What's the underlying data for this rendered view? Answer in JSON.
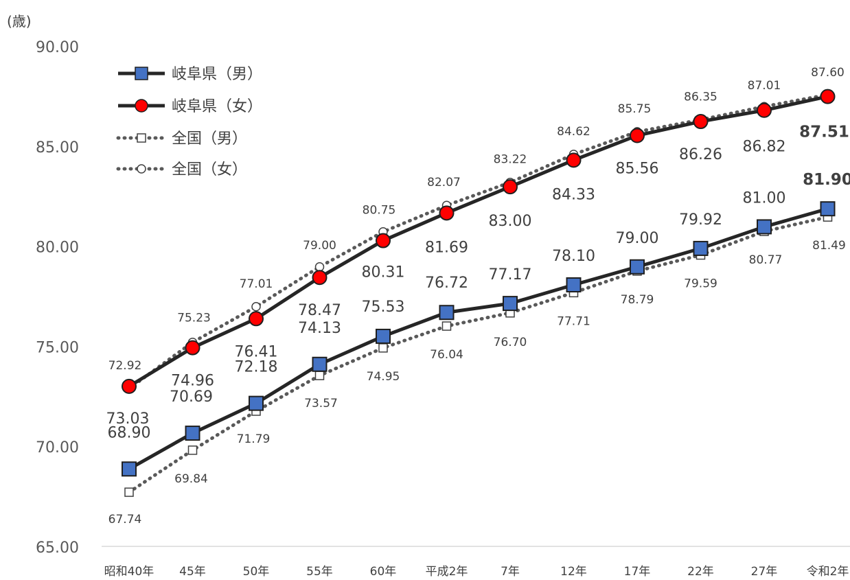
{
  "chart_data": {
    "type": "line",
    "title": "",
    "xlabel": "",
    "ylabel": "(歳)",
    "ylim": [
      65,
      90
    ],
    "yticks": [
      "90.00",
      "85.00",
      "80.00",
      "75.00",
      "70.00",
      "65.00"
    ],
    "grid": false,
    "legend_position": "top-left",
    "categories": [
      "昭和40年",
      "45年",
      "50年",
      "55年",
      "60年",
      "平成2年",
      "7年",
      "12年",
      "17年",
      "22年",
      "27年",
      "令和2年"
    ],
    "series": [
      {
        "name": "岐阜県（男）",
        "style": "solid",
        "marker": "square",
        "marker_color": "#4472C4",
        "line_color": "#262626",
        "values": [
          68.9,
          70.69,
          72.18,
          74.13,
          75.53,
          76.72,
          77.17,
          78.1,
          79.0,
          79.92,
          81.0,
          81.9
        ],
        "labels": [
          "68.90",
          "70.69",
          "72.18",
          "74.13",
          "75.53",
          "76.72",
          "77.17",
          "78.10",
          "79.00",
          "79.92",
          "81.00",
          "81.90"
        ]
      },
      {
        "name": "岐阜県（女）",
        "style": "solid",
        "marker": "circle",
        "marker_color": "#FF0000",
        "line_color": "#262626",
        "values": [
          73.03,
          74.96,
          76.41,
          78.47,
          80.31,
          81.69,
          83.0,
          84.33,
          85.56,
          86.26,
          86.82,
          87.51
        ],
        "labels": [
          "73.03",
          "74.96",
          "76.41",
          "78.47",
          "80.31",
          "81.69",
          "83.00",
          "84.33",
          "85.56",
          "86.26",
          "86.82",
          "87.51"
        ]
      },
      {
        "name": "全国（男）",
        "style": "dotted",
        "marker": "square",
        "marker_color": "#FFFFFF",
        "line_color": "#595959",
        "values": [
          67.74,
          69.84,
          71.79,
          73.57,
          74.95,
          76.04,
          76.7,
          77.71,
          78.79,
          79.59,
          80.77,
          81.49
        ],
        "labels": [
          "67.74",
          "69.84",
          "71.79",
          "73.57",
          "74.95",
          "76.04",
          "76.70",
          "77.71",
          "78.79",
          "79.59",
          "80.77",
          "81.49"
        ]
      },
      {
        "name": "全国（女）",
        "style": "dotted",
        "marker": "circle",
        "marker_color": "#FFFFFF",
        "line_color": "#595959",
        "values": [
          72.92,
          75.23,
          77.01,
          79.0,
          80.75,
          82.07,
          83.22,
          84.62,
          85.75,
          86.35,
          87.01,
          87.6
        ],
        "labels": [
          "72.92",
          "75.23",
          "77.01",
          "79.00",
          "80.75",
          "82.07",
          "83.22",
          "84.62",
          "85.75",
          "86.35",
          "87.01",
          "87.60"
        ]
      }
    ]
  }
}
